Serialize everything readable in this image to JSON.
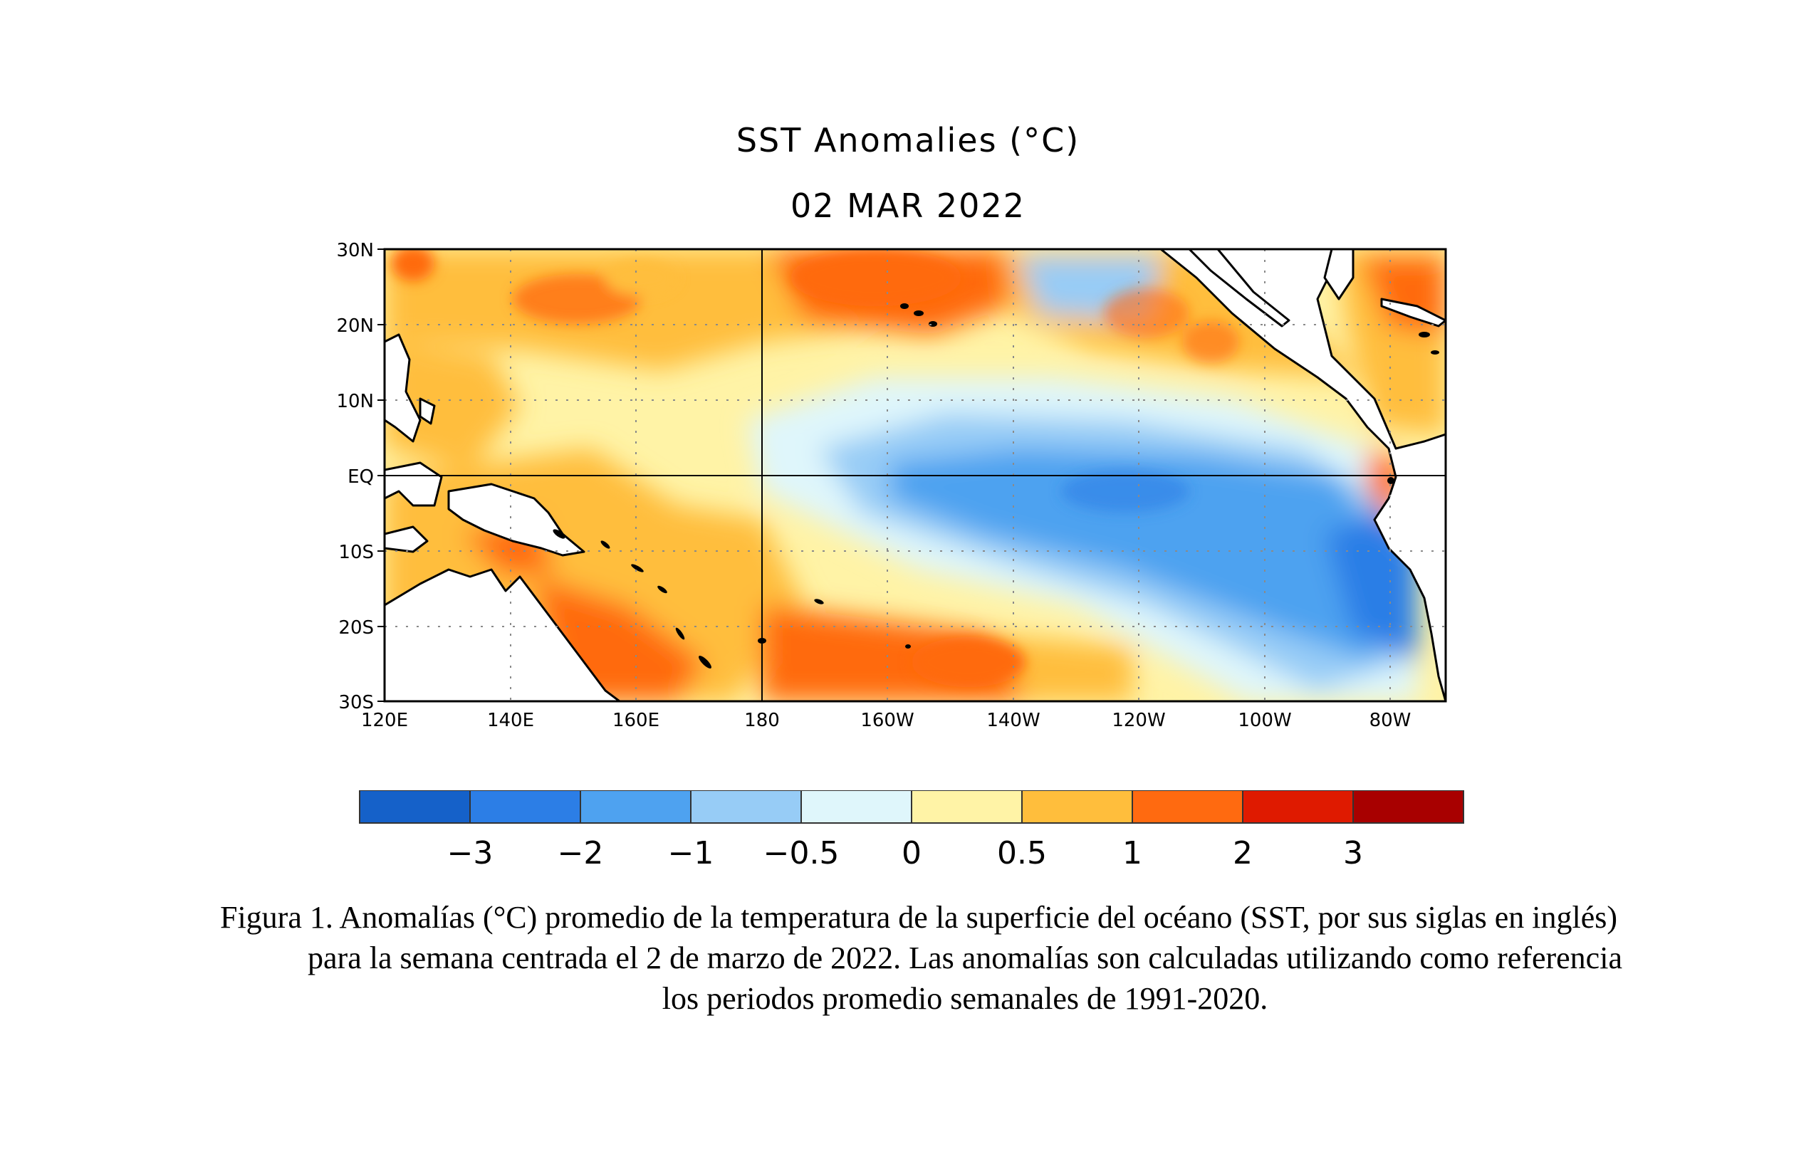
{
  "figure": {
    "title_line1": "SST Anomalies (°C)",
    "title_line2": "02 MAR 2022"
  },
  "map": {
    "lat_labels": [
      "30N",
      "20N",
      "10N",
      "EQ",
      "10S",
      "20S",
      "30S"
    ],
    "lon_labels": [
      "120E",
      "140E",
      "160E",
      "180",
      "160W",
      "140W",
      "120W",
      "100W",
      "80W"
    ],
    "land_color": "#ffffff",
    "grid": "dotted"
  },
  "colorbar": {
    "colors": [
      "#1561c9",
      "#2c7ee6",
      "#4ea2f0",
      "#97ccf6",
      "#dff6fb",
      "#fff3a6",
      "#ffbe3c",
      "#ff6a10",
      "#df1a00",
      "#a80000"
    ],
    "tick_labels": [
      "−3",
      "−2",
      "−1",
      "−0.5",
      "0",
      "0.5",
      "1",
      "2",
      "3"
    ]
  },
  "caption": {
    "line1": "Figura 1. Anomalías (°C) promedio de la temperatura de la superficie del océano (SST, por sus siglas en inglés)",
    "line2": "para la semana centrada el 2 de marzo de 2022. Las anomalías son calculadas utilizando como referencia",
    "line3": "los periodos promedio semanales de 1991-2020."
  }
}
